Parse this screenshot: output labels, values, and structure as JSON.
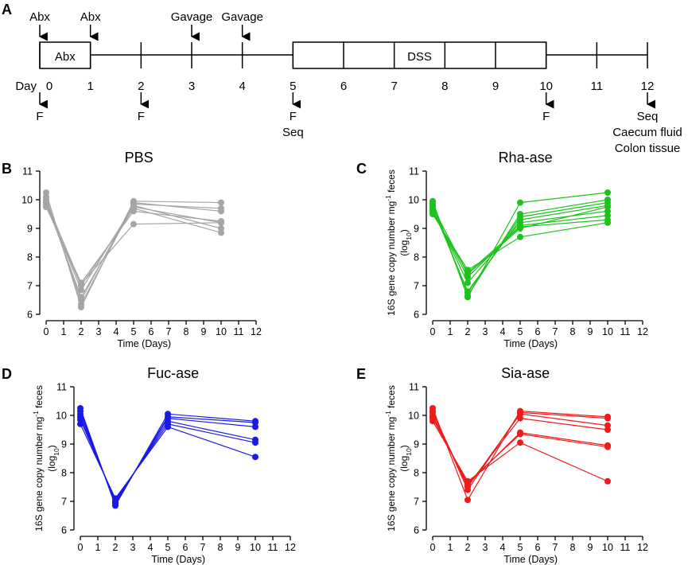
{
  "panel_labels": [
    "A",
    "B",
    "C",
    "D",
    "E"
  ],
  "timeline": {
    "day_label": "Day",
    "days": [
      "0",
      "1",
      "2",
      "3",
      "4",
      "5",
      "6",
      "7",
      "8",
      "9",
      "10",
      "11",
      "12"
    ],
    "top_markers": [
      {
        "day": 0,
        "label": "Abx"
      },
      {
        "day": 1,
        "label": "Abx"
      },
      {
        "day": 3,
        "label": "Gavage"
      },
      {
        "day": 4,
        "label": "Gavage"
      }
    ],
    "bottom_markers": [
      {
        "day": 0,
        "lines": [
          "F"
        ]
      },
      {
        "day": 2,
        "lines": [
          "F"
        ]
      },
      {
        "day": 5,
        "lines": [
          "F",
          "Seq"
        ]
      },
      {
        "day": 10,
        "lines": [
          "F"
        ]
      },
      {
        "day": 12,
        "lines": [
          "Seq",
          "Caecum fluid",
          "Colon tissue"
        ]
      }
    ],
    "boxes": [
      {
        "start": 0,
        "end": 1,
        "label": "Abx"
      },
      {
        "start": 5,
        "end": 10,
        "label": "DSS"
      }
    ],
    "range": [
      0,
      12
    ]
  },
  "chart_data": [
    {
      "id": "B",
      "type": "line",
      "title": "PBS",
      "color": "#a5a5a5",
      "xlabel": "Time (Days)",
      "ylabel_main": "16S gene copy number mg",
      "ylabel_sup": "-1",
      "ylabel_tail": " feces",
      "ylabel_log": "(log",
      "ylabel_log_sub": "10",
      "ylabel_log_close": ")",
      "show_ylabel": false,
      "xlim": [
        0,
        12
      ],
      "ylim": [
        6,
        11
      ],
      "xticks": [
        0,
        1,
        2,
        3,
        4,
        5,
        6,
        7,
        8,
        9,
        10,
        11,
        12
      ],
      "yticks": [
        6,
        7,
        8,
        9,
        10,
        11
      ],
      "x": [
        0,
        2,
        5,
        10
      ],
      "series": [
        {
          "values": [
            10.25,
            6.25,
            9.95,
            9.9
          ]
        },
        {
          "values": [
            10.1,
            6.35,
            9.85,
            9.7
          ]
        },
        {
          "values": [
            10.0,
            6.5,
            9.9,
            9.6
          ]
        },
        {
          "values": [
            9.9,
            6.6,
            9.75,
            9.2
          ]
        },
        {
          "values": [
            9.85,
            6.85,
            9.8,
            9.0
          ]
        },
        {
          "values": [
            9.8,
            7.0,
            9.7,
            8.85
          ]
        },
        {
          "values": [
            9.75,
            7.1,
            9.6,
            9.25
          ]
        },
        {
          "values": [
            9.95,
            7.05,
            9.15,
            9.2
          ]
        }
      ]
    },
    {
      "id": "C",
      "type": "line",
      "title": "Rha-ase",
      "color": "#1ec21e",
      "xlabel": "Time (Days)",
      "ylabel_main": "16S gene copy number mg",
      "ylabel_sup": "-1",
      "ylabel_tail": " feces",
      "ylabel_log": "(log",
      "ylabel_log_sub": "10",
      "ylabel_log_close": ")",
      "show_ylabel": true,
      "xlim": [
        0,
        12
      ],
      "ylim": [
        6,
        11
      ],
      "xticks": [
        0,
        1,
        2,
        3,
        4,
        5,
        6,
        7,
        8,
        9,
        10,
        11,
        12
      ],
      "yticks": [
        6,
        7,
        8,
        9,
        10,
        11
      ],
      "x": [
        0,
        2,
        5,
        10
      ],
      "series": [
        {
          "values": [
            9.95,
            6.6,
            9.9,
            10.25
          ]
        },
        {
          "values": [
            9.85,
            6.65,
            9.5,
            10.0
          ]
        },
        {
          "values": [
            9.8,
            6.75,
            9.4,
            9.9
          ]
        },
        {
          "values": [
            9.7,
            6.8,
            9.3,
            9.8
          ]
        },
        {
          "values": [
            9.65,
            7.1,
            9.2,
            9.6
          ]
        },
        {
          "values": [
            9.6,
            7.3,
            9.1,
            9.45
          ]
        },
        {
          "values": [
            9.55,
            7.45,
            9.05,
            9.3
          ]
        },
        {
          "values": [
            9.5,
            7.55,
            8.7,
            9.2
          ]
        },
        {
          "values": [
            9.75,
            7.4,
            9.0,
            9.75
          ]
        }
      ]
    },
    {
      "id": "D",
      "type": "line",
      "title": "Fuc-ase",
      "color": "#1a1ae6",
      "xlabel": "Time (Days)",
      "ylabel_main": "16S gene copy number mg",
      "ylabel_sup": "-1",
      "ylabel_tail": " feces",
      "ylabel_log": "(log",
      "ylabel_log_sub": "10",
      "ylabel_log_close": ")",
      "show_ylabel": true,
      "xlim": [
        0,
        12
      ],
      "ylim": [
        6,
        11
      ],
      "xticks": [
        0,
        1,
        2,
        3,
        4,
        5,
        6,
        7,
        8,
        9,
        10,
        11,
        12
      ],
      "yticks": [
        6,
        7,
        8,
        9,
        10,
        11
      ],
      "x": [
        0,
        2,
        5,
        10
      ],
      "series": [
        {
          "values": [
            10.25,
            6.85,
            10.05,
            9.8
          ]
        },
        {
          "values": [
            10.15,
            6.9,
            9.95,
            9.75
          ]
        },
        {
          "values": [
            10.05,
            6.95,
            9.9,
            9.6
          ]
        },
        {
          "values": [
            9.95,
            7.0,
            9.8,
            9.15
          ]
        },
        {
          "values": [
            9.85,
            7.05,
            9.7,
            9.05
          ]
        },
        {
          "values": [
            9.7,
            7.1,
            9.6,
            8.55
          ]
        }
      ]
    },
    {
      "id": "E",
      "type": "line",
      "title": "Sia-ase",
      "color": "#ef1b1b",
      "xlabel": "Time (Days)",
      "ylabel_main": "16S gene copy number mg",
      "ylabel_sup": "-1",
      "ylabel_tail": " feces",
      "ylabel_log": "(log",
      "ylabel_log_sub": "10",
      "ylabel_log_close": ")",
      "show_ylabel": true,
      "xlim": [
        0,
        12
      ],
      "ylim": [
        6,
        11
      ],
      "xticks": [
        0,
        1,
        2,
        3,
        4,
        5,
        6,
        7,
        8,
        9,
        10,
        11,
        12
      ],
      "yticks": [
        6,
        7,
        8,
        9,
        10,
        11
      ],
      "x": [
        0,
        2,
        5,
        10
      ],
      "series": [
        {
          "values": [
            10.25,
            7.05,
            10.15,
            9.95
          ]
        },
        {
          "values": [
            10.15,
            7.4,
            10.1,
            9.9
          ]
        },
        {
          "values": [
            10.1,
            7.5,
            10.05,
            9.65
          ]
        },
        {
          "values": [
            10.0,
            7.55,
            9.9,
            9.5
          ]
        },
        {
          "values": [
            9.95,
            7.6,
            9.4,
            8.95
          ]
        },
        {
          "values": [
            9.9,
            7.65,
            9.35,
            8.9
          ]
        },
        {
          "values": [
            9.8,
            7.7,
            9.05,
            7.7
          ]
        }
      ]
    }
  ]
}
